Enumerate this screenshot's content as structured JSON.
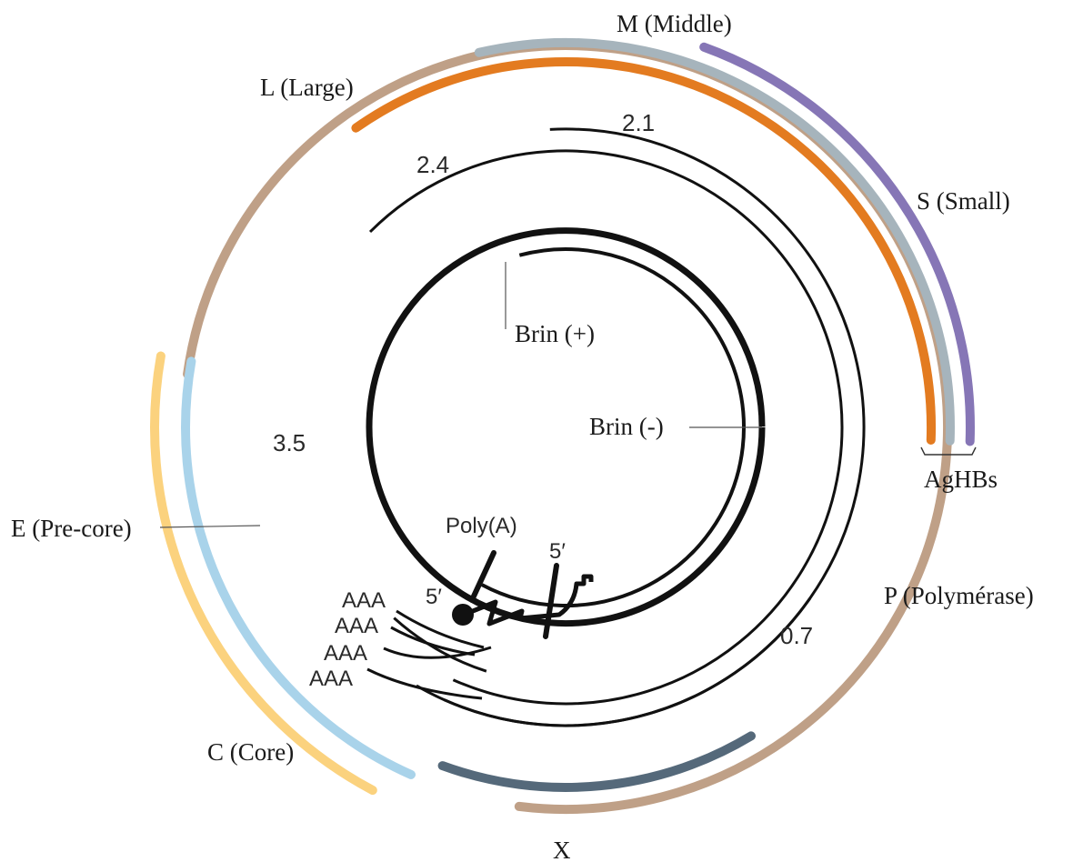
{
  "colors": {
    "large": "#E37B20",
    "middle": "#A6B4BC",
    "small": "#8676B6",
    "polymerase": "#BFA087",
    "precore": "#FBD27E",
    "core": "#A9D3EA",
    "x": "#55697A",
    "strand": "#111111"
  },
  "genes": {
    "middle": "M (Middle)",
    "large": "L (Large)",
    "small": "S (Small)",
    "agHBs": "AgHBs",
    "polymerase": "P (Polymérase)",
    "precore": "E (Pre-core)",
    "core": "C (Core)",
    "x": "X"
  },
  "strands": {
    "plus": "Brin (+)",
    "minus": "Brin (-)"
  },
  "transcripts": {
    "t21": "2.1",
    "t24": "2.4",
    "t35": "3.5",
    "t07": "0.7"
  },
  "labels": {
    "polyA": "Poly(A)",
    "fivePrimeA": "5′",
    "fivePrimeB": "5′",
    "aaa1": "AAA",
    "aaa2": "AAA",
    "aaa3": "AAA",
    "aaa4": "AAA"
  }
}
